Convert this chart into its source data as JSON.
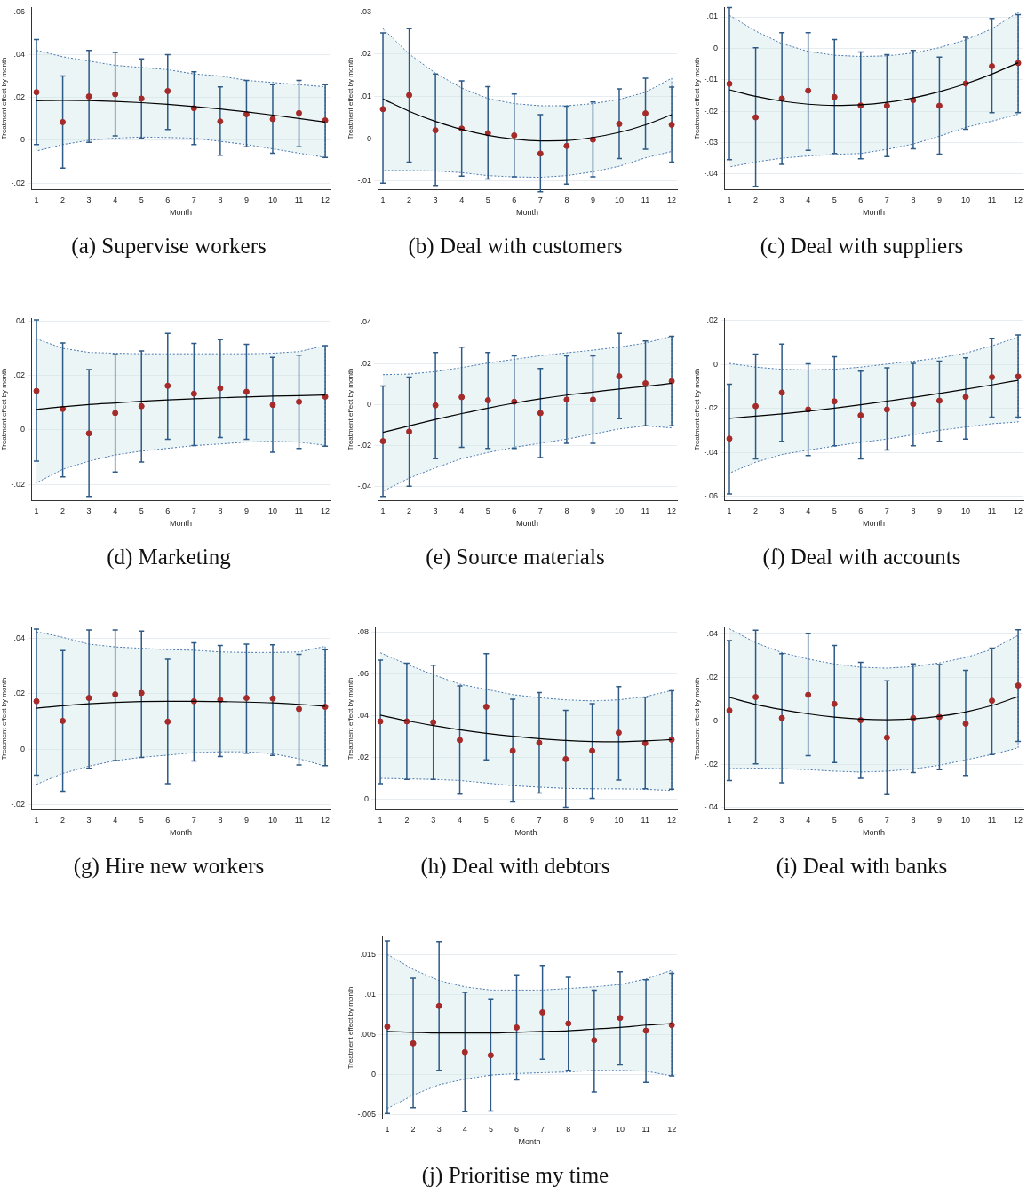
{
  "chart_data": [
    {
      "type": "scatter",
      "title": "(a) Supervise workers",
      "xlabel": "Month",
      "ylabel": "Treatment effect by month",
      "x": [
        1,
        2,
        3,
        4,
        5,
        6,
        7,
        8,
        9,
        10,
        11,
        12
      ],
      "xlim": [
        0.8,
        12.2
      ],
      "xticks": [
        1,
        2,
        3,
        4,
        5,
        6,
        7,
        8,
        9,
        10,
        11,
        12
      ],
      "ylim": [
        -0.023,
        0.062
      ],
      "yticks": [
        {
          "value": -0.02,
          "label": "-.02"
        },
        {
          "value": 0,
          "label": "0"
        },
        {
          "value": 0.02,
          "label": ".02"
        },
        {
          "value": 0.04,
          "label": ".04"
        },
        {
          "value": 0.06,
          "label": ".06"
        }
      ],
      "grid": "y",
      "legend": false,
      "series": [
        {
          "type": "line",
          "color": "#000000",
          "line_style": "solid",
          "marker": "none",
          "values": [
            0.0185,
            0.0187,
            0.0186,
            0.0182,
            0.0176,
            0.0168,
            0.0158,
            0.0146,
            0.0133,
            0.0118,
            0.0102,
            0.0085
          ],
          "lower": [
            -0.005,
            -0.002,
            0,
            0.001,
            0.0015,
            0.0013,
            0.001,
            -0.0005,
            -0.002,
            -0.004,
            -0.006,
            -0.008
          ],
          "upper": [
            0.042,
            0.039,
            0.037,
            0.035,
            0.034,
            0.033,
            0.031,
            0.03,
            0.028,
            0.027,
            0.026,
            0.025
          ]
        },
        {
          "type": "scatter",
          "color": "#a52a2a",
          "marker": "circle",
          "values": [
            0.0225,
            0.0085,
            0.0205,
            0.0215,
            0.0195,
            0.023,
            0.015,
            0.0088,
            0.0122,
            0.0099,
            0.0127,
            0.0093
          ],
          "errors": [
            [
              -0.002,
              0.047
            ],
            [
              -0.013,
              0.03
            ],
            [
              -0.001,
              0.042
            ],
            [
              0.002,
              0.041
            ],
            [
              0.001,
              0.038
            ],
            [
              0.005,
              0.04
            ],
            [
              -0.002,
              0.032
            ],
            [
              -0.007,
              0.025
            ],
            [
              -0.003,
              0.028
            ],
            [
              -0.006,
              0.026
            ],
            [
              -0.003,
              0.028
            ],
            [
              -0.008,
              0.026
            ]
          ]
        }
      ]
    },
    {
      "type": "scatter",
      "title": "(b) Deal with customers",
      "xlabel": "Month",
      "ylabel": "Treatment effect by month",
      "x": [
        1,
        2,
        3,
        4,
        5,
        6,
        7,
        8,
        9,
        10,
        11,
        12
      ],
      "xlim": [
        0.8,
        12.2
      ],
      "xticks": [
        1,
        2,
        3,
        4,
        5,
        6,
        7,
        8,
        9,
        10,
        11,
        12
      ],
      "ylim": [
        -0.012,
        0.031
      ],
      "yticks": [
        {
          "value": -0.01,
          "label": "-.01"
        },
        {
          "value": 0,
          "label": "0"
        },
        {
          "value": 0.01,
          "label": ".01"
        },
        {
          "value": 0.02,
          "label": ".02"
        },
        {
          "value": 0.03,
          "label": ".03"
        }
      ],
      "grid": "y",
      "legend": false,
      "series": [
        {
          "type": "line",
          "color": "#000000",
          "line_style": "solid",
          "marker": "none",
          "values": [
            0.0094,
            0.0065,
            0.0041,
            0.0022,
            0.0008,
            -0.0001,
            -0.0005,
            -0.0004,
            0.0003,
            0.0015,
            0.0033,
            0.0057
          ],
          "lower": [
            -0.0075,
            -0.0075,
            -0.0076,
            -0.008,
            -0.0087,
            -0.009,
            -0.0091,
            -0.0087,
            -0.0078,
            -0.0065,
            -0.0045,
            -0.003
          ],
          "upper": [
            0.026,
            0.02,
            0.0155,
            0.012,
            0.0095,
            0.0083,
            0.0078,
            0.0078,
            0.0083,
            0.0093,
            0.011,
            0.0143
          ]
        },
        {
          "type": "scatter",
          "color": "#a52a2a",
          "marker": "circle",
          "values": [
            0.007,
            0.0103,
            0.002,
            0.0024,
            0.0013,
            0.0008,
            -0.0035,
            -0.0017,
            -0.0002,
            0.0035,
            0.006,
            0.0033
          ],
          "errors": [
            [
              -0.0105,
              0.025
            ],
            [
              -0.0055,
              0.026
            ],
            [
              -0.011,
              0.0153
            ],
            [
              -0.0088,
              0.0137
            ],
            [
              -0.0095,
              0.0123
            ],
            [
              -0.009,
              0.0106
            ],
            [
              -0.0125,
              0.0057
            ],
            [
              -0.0107,
              0.0077
            ],
            [
              -0.009,
              0.0087
            ],
            [
              -0.0047,
              0.0118
            ],
            [
              -0.0025,
              0.0143
            ],
            [
              -0.0055,
              0.0122
            ]
          ]
        }
      ]
    },
    {
      "type": "scatter",
      "title": "(c) Deal with suppliers",
      "xlabel": "Month",
      "ylabel": "Treatment effect by month",
      "x": [
        1,
        2,
        3,
        4,
        5,
        6,
        7,
        8,
        9,
        10,
        11,
        12
      ],
      "xlim": [
        0.8,
        12.2
      ],
      "xticks": [
        1,
        2,
        3,
        4,
        5,
        6,
        7,
        8,
        9,
        10,
        11,
        12
      ],
      "ylim": [
        -0.045,
        0.013
      ],
      "yticks": [
        {
          "value": -0.04,
          "label": "-.04"
        },
        {
          "value": -0.03,
          "label": "-.03"
        },
        {
          "value": -0.02,
          "label": "-.02"
        },
        {
          "value": -0.01,
          "label": "-.01"
        },
        {
          "value": 0,
          "label": "0"
        },
        {
          "value": 0.01,
          "label": ".01"
        }
      ],
      "grid": "y",
      "legend": false,
      "series": [
        {
          "type": "line",
          "color": "#000000",
          "line_style": "solid",
          "marker": "none",
          "values": [
            -0.0132,
            -0.0153,
            -0.0168,
            -0.0178,
            -0.0182,
            -0.018,
            -0.0172,
            -0.0158,
            -0.0138,
            -0.0113,
            -0.0082,
            -0.0046
          ],
          "lower": [
            -0.0378,
            -0.0362,
            -0.035,
            -0.0343,
            -0.0338,
            -0.0335,
            -0.0322,
            -0.0305,
            -0.028,
            -0.0252,
            -0.0232,
            -0.021
          ],
          "upper": [
            0.0105,
            0.0055,
            0.0015,
            -0.001,
            -0.0022,
            -0.0026,
            -0.0024,
            -0.0015,
            0.0002,
            0.0027,
            0.0062,
            0.0115
          ]
        },
        {
          "type": "scatter",
          "color": "#a52a2a",
          "marker": "circle",
          "values": [
            -0.0113,
            -0.022,
            -0.016,
            -0.0135,
            -0.0155,
            -0.0182,
            -0.0183,
            -0.0165,
            -0.0183,
            -0.0112,
            -0.0057,
            -0.0047
          ],
          "errors": [
            [
              -0.0355,
              0.013
            ],
            [
              -0.044,
              0.0002
            ],
            [
              -0.037,
              0.005
            ],
            [
              -0.0325,
              0.005
            ],
            [
              -0.0335,
              0.0028
            ],
            [
              -0.0352,
              -0.0012
            ],
            [
              -0.0345,
              -0.002
            ],
            [
              -0.032,
              -0.0007
            ],
            [
              -0.0337,
              -0.0028
            ],
            [
              -0.0258,
              0.0035
            ],
            [
              -0.0205,
              0.0095
            ],
            [
              -0.0205,
              0.0107
            ]
          ]
        }
      ]
    },
    {
      "type": "scatter",
      "title": "(d) Marketing",
      "xlabel": "Month",
      "ylabel": "Treatment effect by month",
      "x": [
        1,
        2,
        3,
        4,
        5,
        6,
        7,
        8,
        9,
        10,
        11,
        12
      ],
      "xlim": [
        0.8,
        12.2
      ],
      "xticks": [
        1,
        2,
        3,
        4,
        5,
        6,
        7,
        8,
        9,
        10,
        11,
        12
      ],
      "ylim": [
        -0.026,
        0.041
      ],
      "yticks": [
        {
          "value": -0.02,
          "label": "-.02"
        },
        {
          "value": 0,
          "label": "0"
        },
        {
          "value": 0.02,
          "label": ".02"
        },
        {
          "value": 0.04,
          "label": ".04"
        }
      ],
      "grid": "y",
      "legend": false,
      "series": [
        {
          "type": "line",
          "color": "#000000",
          "line_style": "solid",
          "marker": "none",
          "values": [
            0.0075,
            0.0085,
            0.0093,
            0.0099,
            0.0105,
            0.011,
            0.0114,
            0.0118,
            0.0121,
            0.0124,
            0.0126,
            0.0128
          ],
          "lower": [
            -0.0195,
            -0.0145,
            -0.0115,
            -0.0092,
            -0.0078,
            -0.0068,
            -0.0058,
            -0.0052,
            -0.0045,
            -0.0042,
            -0.0045,
            -0.0057
          ],
          "upper": [
            0.0335,
            0.03,
            0.0285,
            0.0282,
            0.028,
            0.028,
            0.028,
            0.028,
            0.028,
            0.0282,
            0.0288,
            0.031
          ]
        },
        {
          "type": "scatter",
          "color": "#a52a2a",
          "marker": "circle",
          "values": [
            0.0143,
            0.0077,
            -0.0013,
            0.0062,
            0.0087,
            0.0162,
            0.0133,
            0.0153,
            0.014,
            0.0092,
            0.0103,
            0.0122
          ],
          "errors": [
            [
              -0.0115,
              0.0405
            ],
            [
              -0.0173,
              0.032
            ],
            [
              -0.0245,
              0.0222
            ],
            [
              -0.0155,
              0.0277
            ],
            [
              -0.0118,
              0.029
            ],
            [
              -0.0035,
              0.0355
            ],
            [
              -0.0058,
              0.0318
            ],
            [
              -0.0028,
              0.0332
            ],
            [
              -0.0035,
              0.0315
            ],
            [
              -0.0082,
              0.0267
            ],
            [
              -0.0068,
              0.0275
            ],
            [
              -0.006,
              0.031
            ]
          ]
        }
      ]
    },
    {
      "type": "scatter",
      "title": "(e) Source materials",
      "xlabel": "Month",
      "ylabel": "Treatment effect by month",
      "x": [
        1,
        2,
        3,
        4,
        5,
        6,
        7,
        8,
        9,
        10,
        11,
        12
      ],
      "xlim": [
        0.8,
        12.2
      ],
      "xticks": [
        1,
        2,
        3,
        4,
        5,
        6,
        7,
        8,
        9,
        10,
        11,
        12
      ],
      "ylim": [
        -0.047,
        0.042
      ],
      "yticks": [
        {
          "value": -0.04,
          "label": "-.04"
        },
        {
          "value": -0.02,
          "label": "-.02"
        },
        {
          "value": 0,
          "label": "0"
        },
        {
          "value": 0.02,
          "label": ".02"
        },
        {
          "value": 0.04,
          "label": ".04"
        }
      ],
      "grid": "y",
      "legend": false,
      "series": [
        {
          "type": "line",
          "color": "#000000",
          "line_style": "solid",
          "marker": "none",
          "values": [
            -0.0137,
            -0.0105,
            -0.0074,
            -0.0045,
            -0.0018,
            0.0006,
            0.0027,
            0.0045,
            0.006,
            0.0075,
            0.0088,
            0.0103
          ],
          "lower": [
            -0.0425,
            -0.036,
            -0.031,
            -0.0265,
            -0.0235,
            -0.021,
            -0.019,
            -0.017,
            -0.0145,
            -0.012,
            -0.0105,
            -0.0115
          ],
          "upper": [
            0.0145,
            0.0148,
            0.016,
            0.018,
            0.0202,
            0.022,
            0.0238,
            0.0252,
            0.0265,
            0.028,
            0.03,
            0.0333
          ]
        },
        {
          "type": "scatter",
          "color": "#a52a2a",
          "marker": "circle",
          "values": [
            -0.018,
            -0.0133,
            -0.0005,
            0.0035,
            0.002,
            0.0013,
            -0.0043,
            0.0023,
            0.0023,
            0.0137,
            0.0103,
            0.0113
          ],
          "errors": [
            [
              -0.045,
              0.009
            ],
            [
              -0.04,
              0.0133
            ],
            [
              -0.0265,
              0.0253
            ],
            [
              -0.021,
              0.028
            ],
            [
              -0.0215,
              0.0253
            ],
            [
              -0.0215,
              0.0237
            ],
            [
              -0.026,
              0.0175
            ],
            [
              -0.019,
              0.0237
            ],
            [
              -0.019,
              0.0237
            ],
            [
              -0.007,
              0.0347
            ],
            [
              -0.0105,
              0.031
            ],
            [
              -0.0105,
              0.0333
            ]
          ]
        }
      ]
    },
    {
      "type": "scatter",
      "title": "(f) Deal with accounts",
      "xlabel": "Month",
      "ylabel": "Treatment effect by month",
      "x": [
        1,
        2,
        3,
        4,
        5,
        6,
        7,
        8,
        9,
        10,
        11,
        12
      ],
      "xlim": [
        0.8,
        12.2
      ],
      "xticks": [
        1,
        2,
        3,
        4,
        5,
        6,
        7,
        8,
        9,
        10,
        11,
        12
      ],
      "ylim": [
        -0.062,
        0.021
      ],
      "yticks": [
        {
          "value": -0.06,
          "label": "-.06"
        },
        {
          "value": -0.04,
          "label": "-.04"
        },
        {
          "value": -0.02,
          "label": "-.02"
        },
        {
          "value": 0,
          "label": "0"
        },
        {
          "value": 0.02,
          "label": ".02"
        }
      ],
      "grid": "y",
      "legend": false,
      "series": [
        {
          "type": "line",
          "color": "#000000",
          "line_style": "solid",
          "marker": "none",
          "values": [
            -0.0245,
            -0.0235,
            -0.0225,
            -0.0213,
            -0.0199,
            -0.0184,
            -0.0167,
            -0.015,
            -0.0132,
            -0.0113,
            -0.0093,
            -0.0072
          ],
          "lower": [
            -0.0495,
            -0.0445,
            -0.041,
            -0.039,
            -0.0372,
            -0.0355,
            -0.034,
            -0.032,
            -0.03,
            -0.0285,
            -0.027,
            -0.0262
          ],
          "upper": [
            0.0005,
            -0.0012,
            -0.0022,
            -0.0025,
            -0.0022,
            -0.0012,
            0.0002,
            0.0015,
            0.003,
            0.0052,
            0.0085,
            0.0125
          ]
        },
        {
          "type": "scatter",
          "color": "#a52a2a",
          "marker": "circle",
          "values": [
            -0.0338,
            -0.019,
            -0.0128,
            -0.0205,
            -0.0168,
            -0.0232,
            -0.0205,
            -0.018,
            -0.0165,
            -0.0148,
            -0.0058,
            -0.0055
          ],
          "errors": [
            [
              -0.059,
              -0.009
            ],
            [
              -0.043,
              0.0048
            ],
            [
              -0.035,
              0.0093
            ],
            [
              -0.0415,
              0.0003
            ],
            [
              -0.037,
              0.0035
            ],
            [
              -0.043,
              -0.003
            ],
            [
              -0.039,
              -0.0015
            ],
            [
              -0.037,
              0.0005
            ],
            [
              -0.035,
              0.0015
            ],
            [
              -0.034,
              0.003
            ],
            [
              -0.024,
              0.012
            ],
            [
              -0.024,
              0.0135
            ]
          ]
        }
      ]
    },
    {
      "type": "scatter",
      "title": "(g) Hire new workers",
      "xlabel": "Month",
      "ylabel": "Treatment effect by month",
      "x": [
        1,
        2,
        3,
        4,
        5,
        6,
        7,
        8,
        9,
        10,
        11,
        12
      ],
      "xlim": [
        0.8,
        12.2
      ],
      "xticks": [
        1,
        2,
        3,
        4,
        5,
        6,
        7,
        8,
        9,
        10,
        11,
        12
      ],
      "ylim": [
        -0.022,
        0.044
      ],
      "yticks": [
        {
          "value": -0.02,
          "label": "-.02"
        },
        {
          "value": 0,
          "label": "0"
        },
        {
          "value": 0.02,
          "label": ".02"
        },
        {
          "value": 0.04,
          "label": ".04"
        }
      ],
      "grid": "y",
      "legend": false,
      "series": [
        {
          "type": "line",
          "color": "#000000",
          "line_style": "solid",
          "marker": "none",
          "values": [
            0.0148,
            0.0157,
            0.0164,
            0.0169,
            0.0172,
            0.0173,
            0.0173,
            0.0172,
            0.017,
            0.0167,
            0.0162,
            0.0155
          ],
          "lower": [
            -0.0128,
            -0.0088,
            -0.0062,
            -0.0042,
            -0.003,
            -0.0022,
            -0.0013,
            -0.001,
            -0.001,
            -0.0017,
            -0.0035,
            -0.0062
          ],
          "upper": [
            0.0425,
            0.0405,
            0.038,
            0.037,
            0.0365,
            0.036,
            0.0358,
            0.0352,
            0.035,
            0.035,
            0.0352,
            0.0372
          ]
        },
        {
          "type": "scatter",
          "color": "#a52a2a",
          "marker": "circle",
          "values": [
            0.0173,
            0.0102,
            0.0185,
            0.0198,
            0.0203,
            0.0099,
            0.0173,
            0.0178,
            0.0185,
            0.0183,
            0.0145,
            0.0153
          ],
          "errors": [
            [
              -0.0095,
              0.0435
            ],
            [
              -0.0153,
              0.0357
            ],
            [
              -0.007,
              0.0432
            ],
            [
              -0.0042,
              0.0432
            ],
            [
              -0.003,
              0.0428
            ],
            [
              -0.0125,
              0.0325
            ],
            [
              -0.0043,
              0.0385
            ],
            [
              -0.0027,
              0.0375
            ],
            [
              -0.0015,
              0.038
            ],
            [
              -0.0023,
              0.0378
            ],
            [
              -0.0058,
              0.0343
            ],
            [
              -0.006,
              0.036
            ]
          ]
        }
      ]
    },
    {
      "type": "scatter",
      "title": "(h) Deal with debtors",
      "xlabel": "Month",
      "ylabel": "Treatment effect by month",
      "x": [
        1,
        2,
        3,
        4,
        5,
        6,
        7,
        8,
        9,
        10,
        11,
        12
      ],
      "xlim": [
        0.8,
        12.2
      ],
      "xticks": [
        1,
        2,
        3,
        4,
        5,
        6,
        7,
        8,
        9,
        10,
        11,
        12
      ],
      "ylim": [
        -0.005,
        0.082
      ],
      "yticks": [
        {
          "value": 0,
          "label": "0"
        },
        {
          "value": 0.02,
          "label": ".02"
        },
        {
          "value": 0.04,
          "label": ".04"
        },
        {
          "value": 0.06,
          "label": ".06"
        },
        {
          "value": 0.08,
          "label": ".08"
        }
      ],
      "grid": "y",
      "legend": false,
      "series": [
        {
          "type": "line",
          "color": "#000000",
          "line_style": "solid",
          "marker": "none",
          "values": [
            0.0402,
            0.0375,
            0.0352,
            0.0332,
            0.0315,
            0.0301,
            0.029,
            0.0281,
            0.0276,
            0.0275,
            0.0279,
            0.0285
          ],
          "lower": [
            0.01,
            0.0098,
            0.0095,
            0.009,
            0.0078,
            0.0065,
            0.0058,
            0.0052,
            0.005,
            0.005,
            0.0048,
            0.0042
          ],
          "upper": [
            0.07,
            0.0645,
            0.0595,
            0.055,
            0.0525,
            0.05,
            0.0485,
            0.0475,
            0.047,
            0.0475,
            0.049,
            0.052
          ]
        },
        {
          "type": "scatter",
          "color": "#a52a2a",
          "marker": "circle",
          "values": [
            0.0372,
            0.0372,
            0.0368,
            0.0283,
            0.0442,
            0.0232,
            0.027,
            0.0192,
            0.0232,
            0.0318,
            0.0268,
            0.0285
          ],
          "errors": [
            [
              0.0075,
              0.0665
            ],
            [
              0.0095,
              0.065
            ],
            [
              0.0095,
              0.064
            ],
            [
              0.0025,
              0.0542
            ],
            [
              0.0188,
              0.0695
            ],
            [
              -0.0012,
              0.0478
            ],
            [
              0.003,
              0.051
            ],
            [
              -0.0038,
              0.0425
            ],
            [
              0.0005,
              0.0457
            ],
            [
              0.0092,
              0.0538
            ],
            [
              0.005,
              0.0488
            ],
            [
              0.0048,
              0.0518
            ]
          ]
        }
      ]
    },
    {
      "type": "scatter",
      "title": "(i) Deal with banks",
      "xlabel": "Month",
      "ylabel": "Treatment effect by month",
      "x": [
        1,
        2,
        3,
        4,
        5,
        6,
        7,
        8,
        9,
        10,
        11,
        12
      ],
      "xlim": [
        0.8,
        12.2
      ],
      "xticks": [
        1,
        2,
        3,
        4,
        5,
        6,
        7,
        8,
        9,
        10,
        11,
        12
      ],
      "ylim": [
        -0.041,
        0.043
      ],
      "yticks": [
        {
          "value": -0.04,
          "label": "-.04"
        },
        {
          "value": -0.02,
          "label": "-.02"
        },
        {
          "value": 0,
          "label": "0"
        },
        {
          "value": 0.02,
          "label": ".02"
        },
        {
          "value": 0.04,
          "label": ".04"
        }
      ],
      "grid": "y",
      "legend": false,
      "series": [
        {
          "type": "line",
          "color": "#000000",
          "line_style": "solid",
          "marker": "none",
          "values": [
            0.0108,
            0.0076,
            0.0052,
            0.0032,
            0.0017,
            0.0008,
            0.0005,
            0.0009,
            0.0021,
            0.0041,
            0.0071,
            0.0112
          ],
          "lower": [
            -0.022,
            -0.0218,
            -0.022,
            -0.0225,
            -0.0232,
            -0.0236,
            -0.0232,
            -0.0222,
            -0.0205,
            -0.018,
            -0.0155,
            -0.0125
          ],
          "upper": [
            0.0425,
            0.036,
            0.0315,
            0.0285,
            0.0262,
            0.0247,
            0.0243,
            0.025,
            0.0267,
            0.0292,
            0.033,
            0.0395
          ]
        },
        {
          "type": "scatter",
          "color": "#a52a2a",
          "marker": "circle",
          "values": [
            0.0048,
            0.011,
            0.0013,
            0.012,
            0.0078,
            0.0003,
            -0.0077,
            0.0013,
            0.0018,
            -0.0013,
            0.0093,
            0.0163
          ],
          "errors": [
            [
              -0.0275,
              0.037
            ],
            [
              -0.0198,
              0.0418
            ],
            [
              -0.0285,
              0.031
            ],
            [
              -0.016,
              0.0402
            ],
            [
              -0.0192,
              0.0348
            ],
            [
              -0.0265,
              0.027
            ],
            [
              -0.034,
              0.0185
            ],
            [
              -0.0238,
              0.0263
            ],
            [
              -0.0225,
              0.026
            ],
            [
              -0.0252,
              0.0233
            ],
            [
              -0.0155,
              0.0335
            ],
            [
              -0.0095,
              0.042
            ]
          ]
        }
      ]
    },
    {
      "type": "scatter",
      "title": "(j) Prioritise my time",
      "xlabel": "Month",
      "ylabel": "Treatment effect by month",
      "x": [
        1,
        2,
        3,
        4,
        5,
        6,
        7,
        8,
        9,
        10,
        11,
        12
      ],
      "xlim": [
        0.8,
        12.2
      ],
      "xticks": [
        1,
        2,
        3,
        4,
        5,
        6,
        7,
        8,
        9,
        10,
        11,
        12
      ],
      "ylim": [
        -0.0056,
        0.0173
      ],
      "yticks": [
        {
          "value": -0.005,
          "label": "-.005"
        },
        {
          "value": 0,
          "label": "0"
        },
        {
          "value": 0.005,
          "label": ".005"
        },
        {
          "value": 0.01,
          "label": ".01"
        },
        {
          "value": 0.015,
          "label": ".015"
        }
      ],
      "grid": "y",
      "legend": false,
      "series": [
        {
          "type": "line",
          "color": "#000000",
          "line_style": "solid",
          "marker": "none",
          "values": [
            0.0054,
            0.0053,
            0.0052,
            0.0052,
            0.0052,
            0.0053,
            0.0054,
            0.0055,
            0.0057,
            0.0059,
            0.0062,
            0.0064
          ],
          "lower": [
            -0.0043,
            -0.0026,
            -0.0013,
            -0.0006,
            -0.0001,
            0.0001,
            0.0002,
            0.0003,
            0.0005,
            0.0005,
            0.0004,
            -0.0002
          ],
          "upper": [
            0.0151,
            0.0132,
            0.0118,
            0.011,
            0.0106,
            0.0106,
            0.0106,
            0.0108,
            0.011,
            0.0113,
            0.012,
            0.0131
          ]
        },
        {
          "type": "scatter",
          "color": "#a52a2a",
          "marker": "circle",
          "values": [
            0.006,
            0.0039,
            0.0086,
            0.0028,
            0.0024,
            0.0059,
            0.0078,
            0.0064,
            0.0043,
            0.0071,
            0.0055,
            0.0062
          ],
          "errors": [
            [
              -0.0049,
              0.0168
            ],
            [
              -0.0042,
              0.0121
            ],
            [
              0.0005,
              0.0167
            ],
            [
              -0.0047,
              0.0103
            ],
            [
              -0.0046,
              0.0095
            ],
            [
              -0.0007,
              0.0125
            ],
            [
              0.0019,
              0.0137
            ],
            [
              0.0005,
              0.0122
            ],
            [
              -0.0022,
              0.0106
            ],
            [
              0.0012,
              0.0129
            ],
            [
              -0.001,
              0.0119
            ],
            [
              -0.0002,
              0.0127
            ]
          ]
        }
      ]
    }
  ]
}
